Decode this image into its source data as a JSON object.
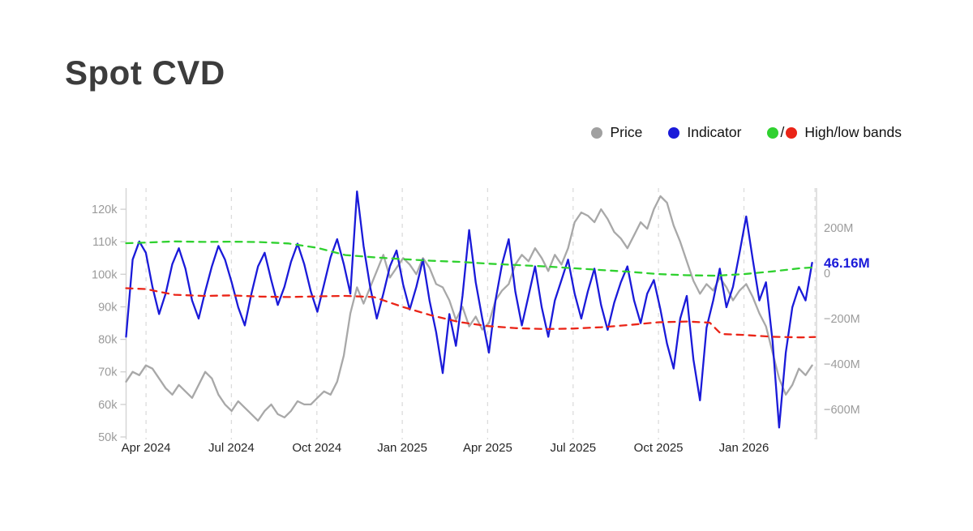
{
  "page": {
    "title": "Spot CVD"
  },
  "legend": {
    "items": [
      {
        "label": "Price",
        "color": "#a0a0a0"
      },
      {
        "label": "Indicator",
        "color": "#1a1ad9"
      },
      {
        "label": "High/low bands",
        "color_high": "#2fd12f",
        "color_low": "#ea2417",
        "separator": "/"
      }
    ]
  },
  "chart_data": {
    "type": "line",
    "title": "Spot CVD",
    "plot": {
      "x": [
        155.5,
        1007
      ],
      "y": [
        232,
        539
      ]
    },
    "x_domain": [
      2.3,
      26.55
    ],
    "x_axis": {
      "ticks": [
        {
          "m": 3,
          "label": "Apr 2024"
        },
        {
          "m": 6,
          "label": "Jul 2024"
        },
        {
          "m": 9,
          "label": "Oct 2024"
        },
        {
          "m": 12,
          "label": "Jan 2025"
        },
        {
          "m": 15,
          "label": "Apr 2025"
        },
        {
          "m": 18,
          "label": "Jul 2025"
        },
        {
          "m": 21,
          "label": "Oct 2025"
        },
        {
          "m": 24,
          "label": "Jan 2026"
        }
      ],
      "extra_gridlines": [
        26.5
      ]
    },
    "left_axis": {
      "unit": "price (k USD)",
      "domain": [
        50,
        126.5
      ],
      "ticks": [
        {
          "v": 120,
          "label": "120k"
        },
        {
          "v": 110,
          "label": "110k"
        },
        {
          "v": 100,
          "label": "100k"
        },
        {
          "v": 90,
          "label": "90k"
        },
        {
          "v": 80,
          "label": "80k"
        },
        {
          "v": 70,
          "label": "70k"
        },
        {
          "v": 60,
          "label": "60k"
        },
        {
          "v": 50,
          "label": "50k"
        }
      ]
    },
    "right_axis": {
      "unit": "indicator (M)",
      "domain": [
        -721.4,
        375
      ],
      "ticks": [
        {
          "v": 200,
          "label": "200M"
        },
        {
          "v": 0,
          "label": "0"
        },
        {
          "v": -200,
          "label": "−200M"
        },
        {
          "v": -400,
          "label": "−400M"
        },
        {
          "v": -600,
          "label": "−600M"
        }
      ]
    },
    "annotation": {
      "label": "46.16M",
      "value": 46.16,
      "color": "#1a1ad9"
    },
    "series": [
      {
        "name": "price",
        "axis": "left",
        "color": "#a8a8a8",
        "width": 2.3,
        "dash": null,
        "x0": 2.3,
        "dx": 0.2317,
        "values": [
          67,
          70,
          69,
          72,
          71,
          68,
          65,
          63,
          66,
          64,
          62,
          66,
          70,
          68,
          63,
          60,
          58,
          61,
          59,
          57,
          55,
          58,
          60,
          57,
          56,
          58,
          61,
          60,
          60,
          62,
          64,
          63,
          67,
          75,
          88,
          96,
          91,
          96,
          101,
          106,
          99,
          102,
          105,
          103,
          100,
          105,
          102,
          97,
          96,
          92,
          86,
          90,
          84,
          87,
          83,
          85,
          92,
          95,
          97,
          103,
          106,
          104,
          108,
          105,
          101,
          106,
          103,
          108,
          116,
          119,
          118,
          116,
          120,
          117,
          113,
          111,
          108,
          112,
          116,
          114,
          120,
          124,
          122,
          115,
          110,
          104,
          98,
          94,
          97,
          95,
          99,
          96,
          92,
          95,
          97,
          93,
          88,
          84,
          76,
          68,
          63,
          66,
          71,
          69,
          72
        ]
      },
      {
        "name": "indicator",
        "axis": "right",
        "color": "#1a1ad9",
        "width": 2.3,
        "dash": null,
        "x0": 2.3,
        "dx": 0.2317,
        "values": [
          -280,
          60,
          140,
          90,
          -60,
          -180,
          -90,
          40,
          110,
          20,
          -120,
          -200,
          -80,
          30,
          120,
          60,
          -40,
          -150,
          -230,
          -90,
          30,
          90,
          -30,
          -140,
          -60,
          50,
          130,
          40,
          -80,
          -170,
          -50,
          70,
          150,
          40,
          -90,
          360,
          120,
          -60,
          -200,
          -90,
          30,
          100,
          -50,
          -160,
          -60,
          60,
          -120,
          -260,
          -440,
          -180,
          -320,
          -100,
          190,
          -40,
          -200,
          -350,
          -120,
          40,
          150,
          -80,
          -230,
          -100,
          30,
          -150,
          -280,
          -120,
          -30,
          60,
          -90,
          -200,
          -80,
          20,
          -140,
          -250,
          -130,
          -40,
          30,
          -120,
          -220,
          -90,
          -30,
          -160,
          -310,
          -420,
          -200,
          -100,
          -380,
          -560,
          -240,
          -120,
          20,
          -150,
          -60,
          90,
          250,
          60,
          -120,
          -40,
          -300,
          -680,
          -350,
          -150,
          -60,
          -120,
          46.16
        ]
      },
      {
        "name": "high-band",
        "axis": "right",
        "color": "#2fd12f",
        "width": 2.3,
        "dash": "8 7",
        "points": [
          [
            2.3,
            132
          ],
          [
            3,
            135
          ],
          [
            4,
            140
          ],
          [
            5,
            138
          ],
          [
            6,
            139
          ],
          [
            7,
            137
          ],
          [
            8,
            131
          ],
          [
            9,
            112
          ],
          [
            10,
            80
          ],
          [
            11,
            70
          ],
          [
            12,
            62
          ],
          [
            13,
            55
          ],
          [
            14,
            50
          ],
          [
            15,
            42
          ],
          [
            16,
            36
          ],
          [
            17,
            30
          ],
          [
            18,
            22
          ],
          [
            19,
            14
          ],
          [
            20,
            6
          ],
          [
            21,
            -4
          ],
          [
            22,
            -9
          ],
          [
            23,
            -11
          ],
          [
            24,
            -4
          ],
          [
            25,
            8
          ],
          [
            26,
            22
          ],
          [
            26.5,
            26
          ]
        ]
      },
      {
        "name": "low-band",
        "axis": "right",
        "color": "#ea2417",
        "width": 2.3,
        "dash": "8 7",
        "points": [
          [
            2.3,
            -66
          ],
          [
            3,
            -70
          ],
          [
            4,
            -95
          ],
          [
            5,
            -100
          ],
          [
            6,
            -98
          ],
          [
            7,
            -103
          ],
          [
            8,
            -105
          ],
          [
            9,
            -102
          ],
          [
            10,
            -100
          ],
          [
            11,
            -105
          ],
          [
            12,
            -148
          ],
          [
            13,
            -185
          ],
          [
            14,
            -215
          ],
          [
            15,
            -233
          ],
          [
            16,
            -242
          ],
          [
            17,
            -246
          ],
          [
            18,
            -244
          ],
          [
            19,
            -238
          ],
          [
            20,
            -228
          ],
          [
            21,
            -216
          ],
          [
            22,
            -213
          ],
          [
            22.8,
            -218
          ],
          [
            23.2,
            -268
          ],
          [
            24,
            -272
          ],
          [
            25,
            -280
          ],
          [
            26,
            -283
          ],
          [
            26.5,
            -281
          ]
        ]
      }
    ]
  }
}
